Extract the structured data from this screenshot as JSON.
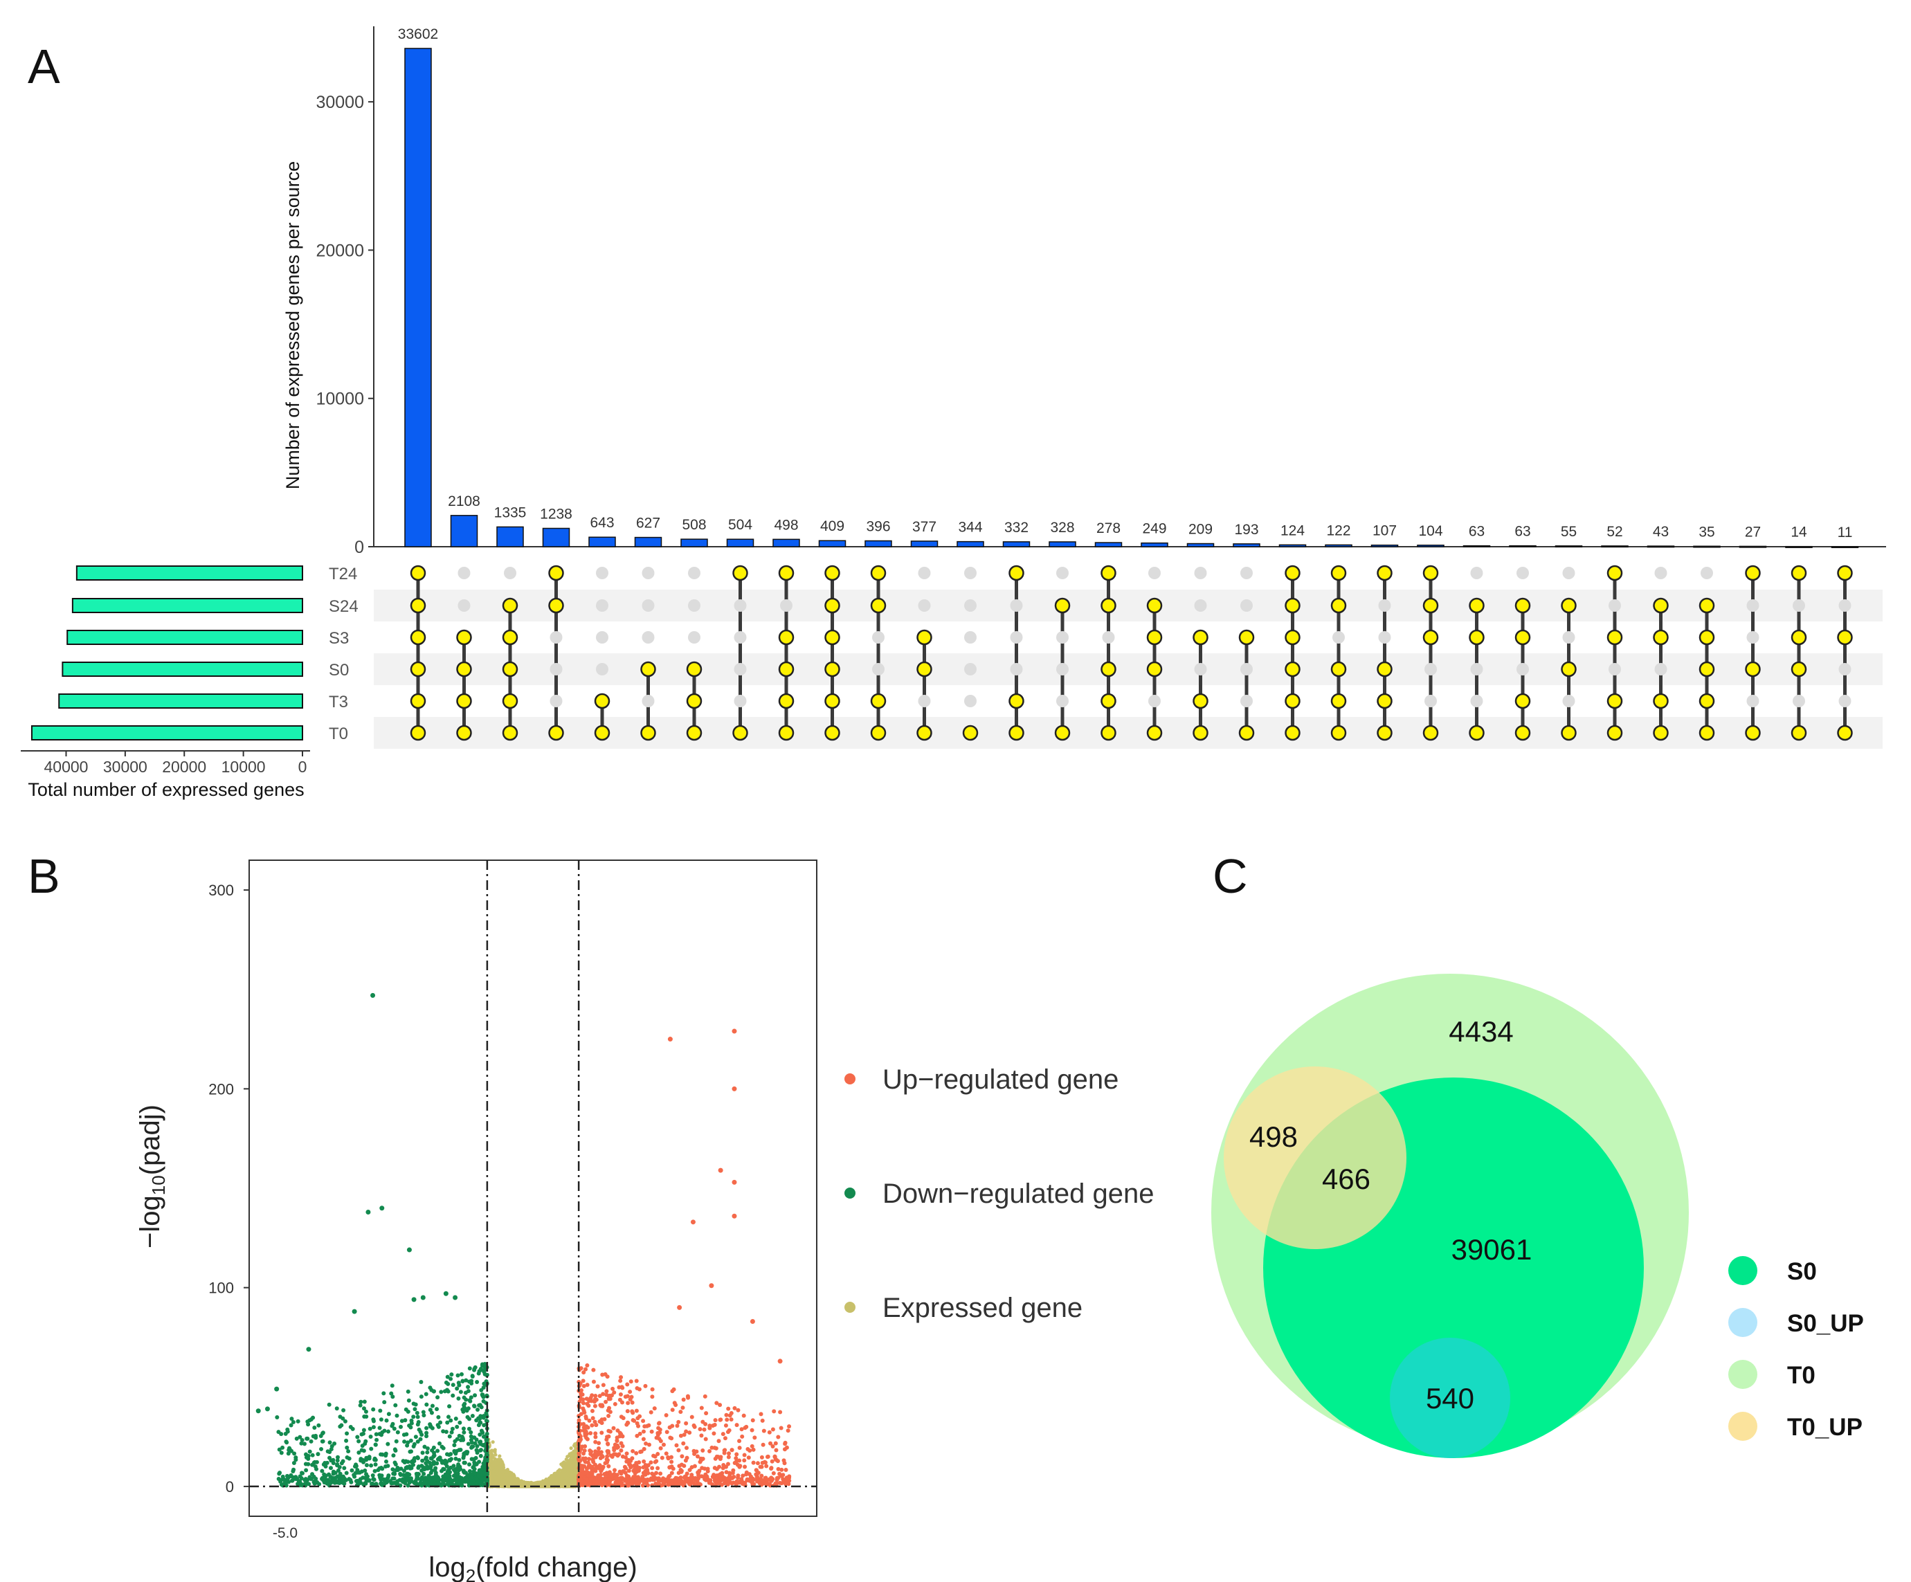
{
  "panels": {
    "a": "A",
    "b": "B",
    "c": "C"
  },
  "chart_data": [
    {
      "type": "bar",
      "title": "",
      "ylabel": "Number of expressed genes per source",
      "yticks": [
        0,
        10000,
        20000,
        30000
      ],
      "ylim": [
        0,
        35000
      ],
      "values": [
        33602,
        2108,
        1335,
        1238,
        643,
        627,
        508,
        504,
        498,
        409,
        396,
        377,
        344,
        332,
        328,
        278,
        249,
        209,
        193,
        124,
        122,
        107,
        104,
        63,
        63,
        55,
        52,
        43,
        35,
        27,
        14,
        11
      ],
      "set_names": [
        "T24",
        "S24",
        "S3",
        "S0",
        "T3",
        "T0"
      ],
      "set_totals": [
        38200,
        38900,
        39800,
        40600,
        41200,
        45800
      ],
      "set_xticks": [
        40000,
        30000,
        20000,
        10000,
        0
      ],
      "set_xlabel": "Total number of expressed genes",
      "intersections": [
        [
          "T24",
          "S24",
          "S3",
          "S0",
          "T3",
          "T0"
        ],
        [
          "S3",
          "S0",
          "T3",
          "T0"
        ],
        [
          "S24",
          "S3",
          "S0",
          "T3",
          "T0"
        ],
        [
          "T24",
          "S24",
          "T0"
        ],
        [
          "T3",
          "T0"
        ],
        [
          "S0",
          "T0"
        ],
        [
          "S0",
          "T3",
          "T0"
        ],
        [
          "T24",
          "T0"
        ],
        [
          "T24",
          "S3",
          "S0",
          "T3",
          "T0"
        ],
        [
          "T24",
          "S24",
          "S3",
          "S0",
          "T3",
          "T0"
        ],
        [
          "T24",
          "S24",
          "T3",
          "T0"
        ],
        [
          "S3",
          "S0",
          "T0"
        ],
        [
          "T0"
        ],
        [
          "T24",
          "T3",
          "T0"
        ],
        [
          "S24",
          "T0"
        ],
        [
          "T24",
          "S24",
          "S0",
          "T3",
          "T0"
        ],
        [
          "S24",
          "S3",
          "S0",
          "T0"
        ],
        [
          "S3",
          "T3",
          "T0"
        ],
        [
          "S3",
          "T0"
        ],
        [
          "T24",
          "S24",
          "S3",
          "S0",
          "T3",
          "T0"
        ],
        [
          "T24",
          "S24",
          "S0",
          "T3",
          "T0"
        ],
        [
          "T24",
          "S0",
          "T3",
          "T0"
        ],
        [
          "T24",
          "S24",
          "S3",
          "T0"
        ],
        [
          "S24",
          "S3",
          "T0"
        ],
        [
          "S24",
          "S3",
          "T3",
          "T0"
        ],
        [
          "S24",
          "S0",
          "T0"
        ],
        [
          "T24",
          "S3",
          "T3",
          "T0"
        ],
        [
          "S24",
          "S3",
          "T3",
          "T0"
        ],
        [
          "S24",
          "S3",
          "S0",
          "T3",
          "T0"
        ],
        [
          "T24",
          "S0",
          "T0"
        ],
        [
          "T24",
          "S3",
          "S0",
          "T0"
        ],
        [
          "T24",
          "S3",
          "T0"
        ]
      ]
    },
    {
      "type": "scatter",
      "xlabel_main": "log",
      "xlabel_sub": "2",
      "xlabel_rest": "(fold change)",
      "ylabel_main": "−log",
      "ylabel_sub": "10",
      "ylabel_rest": "(padj)",
      "xtick_label": "-5.0",
      "xlim": [
        -6.2,
        6.2
      ],
      "ylim": [
        -15,
        315
      ],
      "yticks": [
        0,
        100,
        200,
        300
      ],
      "thresholds": [
        -1,
        1
      ],
      "legend": [
        {
          "label": "Up−regulated gene",
          "color": "#f4694a"
        },
        {
          "label": "Down−regulated gene",
          "color": "#138a4f"
        },
        {
          "label": "Expressed gene",
          "color": "#c8c06a"
        }
      ],
      "highlight_points": {
        "down": [
          [
            -3.5,
            247
          ],
          [
            -3.6,
            138
          ],
          [
            -3.3,
            140
          ],
          [
            -2.7,
            119
          ],
          [
            -2.4,
            95
          ],
          [
            -2.6,
            94
          ],
          [
            -1.9,
            97
          ],
          [
            -1.7,
            95
          ],
          [
            -3.9,
            88
          ],
          [
            -4.9,
            69
          ],
          [
            -5.6,
            49
          ],
          [
            -5.8,
            39
          ],
          [
            -6.0,
            38
          ]
        ],
        "up": [
          [
            4.4,
            229
          ],
          [
            3.0,
            225
          ],
          [
            4.4,
            200
          ],
          [
            4.1,
            159
          ],
          [
            4.4,
            153
          ],
          [
            4.4,
            136
          ],
          [
            3.5,
            133
          ],
          [
            3.9,
            101
          ],
          [
            4.8,
            83
          ],
          [
            3.2,
            90
          ],
          [
            5.4,
            63
          ]
        ]
      },
      "series_counts": {
        "up": 1100,
        "down": 1100,
        "expressed": 3200
      }
    },
    {
      "type": "venn",
      "regions": [
        {
          "label": "4434"
        },
        {
          "label": "498"
        },
        {
          "label": "466"
        },
        {
          "label": "39061"
        },
        {
          "label": "540"
        }
      ],
      "legend": [
        {
          "label": "S0",
          "color": "#00e68a"
        },
        {
          "label": "S0_UP",
          "color": "#b3e5fc"
        },
        {
          "label": "T0",
          "color": "#c2f7b8"
        },
        {
          "label": "T0_UP",
          "color": "#fbe39c"
        }
      ]
    }
  ]
}
